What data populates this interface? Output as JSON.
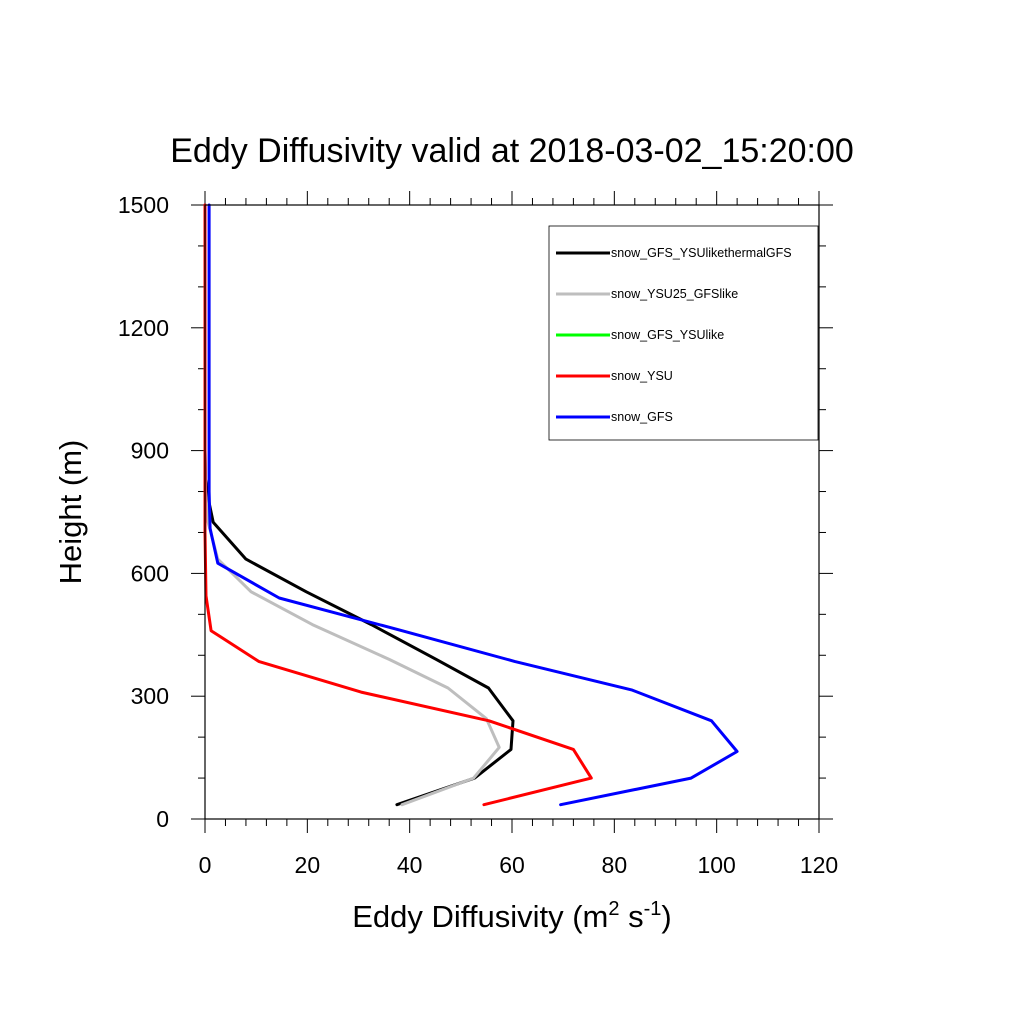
{
  "chart_data": {
    "type": "line",
    "title": "Eddy Diffusivity valid at 2018-03-02_15:20:00",
    "xlabel": {
      "base": "Eddy Diffusivity (m",
      "sup1": "2",
      "mid": " s",
      "sup2": "-1",
      "end": ")"
    },
    "ylabel": "Height (m)",
    "xlim": [
      0,
      120
    ],
    "ylim": [
      0,
      1500
    ],
    "xticks": [
      0,
      20,
      40,
      60,
      80,
      100,
      120
    ],
    "yticks": [
      0,
      300,
      600,
      900,
      1200,
      1500
    ],
    "grid": false,
    "legend_position": "top-right",
    "series": [
      {
        "name": "snow_GFS_YSUlikethermalGFS",
        "color": "#000000",
        "x": [
          37.5,
          52.7,
          59.8,
          60.2,
          55.4,
          45.2,
          32.5,
          19.8,
          8.0,
          1.6,
          0.5,
          0.1,
          0.0,
          0.0,
          0.0
        ],
        "y": [
          35,
          100,
          170,
          240,
          320,
          390,
          475,
          555,
          635,
          725,
          790,
          830,
          900,
          1200,
          1500
        ]
      },
      {
        "name": "snow_YSU25_GFSlike",
        "color": "#bebebe",
        "x": [
          38.5,
          52.5,
          57.5,
          55.0,
          47.5,
          36.0,
          21.0,
          9.0,
          2.5,
          0.6,
          0.1,
          0.0,
          0.0
        ],
        "y": [
          35,
          100,
          175,
          245,
          320,
          390,
          475,
          555,
          635,
          725,
          800,
          900,
          1500
        ]
      },
      {
        "name": "snow_GFS_YSUlike",
        "color": "#00ff00",
        "x": [],
        "y": []
      },
      {
        "name": "snow_YSU",
        "color": "#ff0000",
        "x": [
          54.5,
          75.5,
          72.0,
          55.5,
          30.5,
          10.5,
          1.2,
          0.2,
          0.0,
          0.0,
          0.0
        ],
        "y": [
          35,
          100,
          170,
          240,
          310,
          385,
          460,
          545,
          700,
          900,
          1500
        ]
      },
      {
        "name": "snow_GFS",
        "color": "#0000ff",
        "x": [
          69.5,
          95.0,
          104.0,
          99.0,
          83.5,
          60.5,
          38.5,
          14.5,
          2.5,
          1.0,
          0.8,
          0.8,
          0.8
        ],
        "y": [
          35,
          100,
          165,
          240,
          315,
          385,
          460,
          540,
          625,
          710,
          800,
          1100,
          1500
        ]
      }
    ]
  }
}
